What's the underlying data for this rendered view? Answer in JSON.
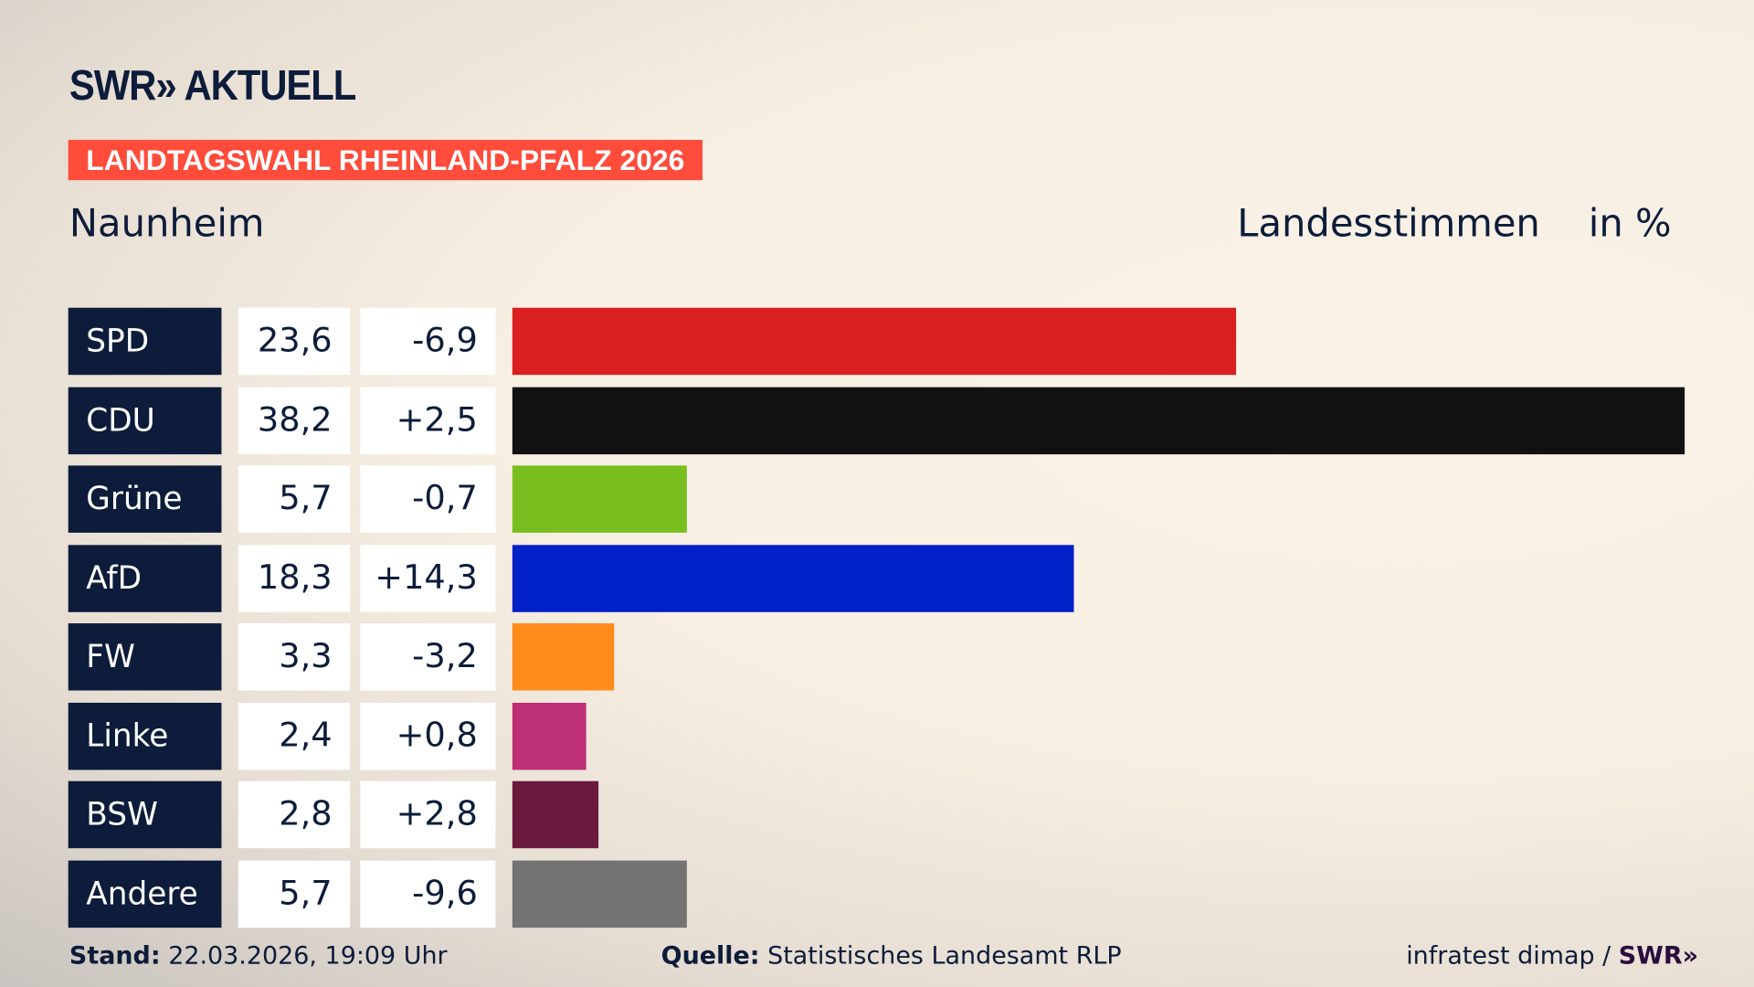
{
  "header": {
    "logo": "SWR» AKTUELL",
    "badge": "LANDTAGSWAHL RHEINLAND-PFALZ 2026",
    "place": "Naunheim",
    "measure": "Landesstimmen",
    "unit": "in %"
  },
  "chart_data": {
    "type": "bar",
    "orientation": "horizontal",
    "categories": [
      "SPD",
      "CDU",
      "Grüne",
      "AfD",
      "FW",
      "Linke",
      "BSW",
      "Andere"
    ],
    "values": [
      23.6,
      38.2,
      5.7,
      18.3,
      3.3,
      2.4,
      2.8,
      5.7
    ],
    "values_label": [
      "23,6",
      "38,2",
      "5,7",
      "18,3",
      "3,3",
      "2,4",
      "2,8",
      "5,7"
    ],
    "diff_label": [
      "-6,9",
      "+2,5",
      "-0,7",
      "+14,3",
      "-3,2",
      "+0,8",
      "+2,8",
      "-9,6"
    ],
    "colors": [
      "#d91f1f",
      "#111111",
      "#78be1e",
      "#0021c8",
      "#ff8c1a",
      "#bd2f76",
      "#6a1a3f",
      "#737373"
    ],
    "xlim": [
      0,
      38.2
    ]
  },
  "footer": {
    "stand_label": "Stand:",
    "stand": "22.03.2026, 19:09 Uhr",
    "source_label": "Quelle:",
    "source": "Statistisches Landesamt RLP",
    "credit": "infratest dimap / ",
    "credit_logo": "SWR»"
  }
}
